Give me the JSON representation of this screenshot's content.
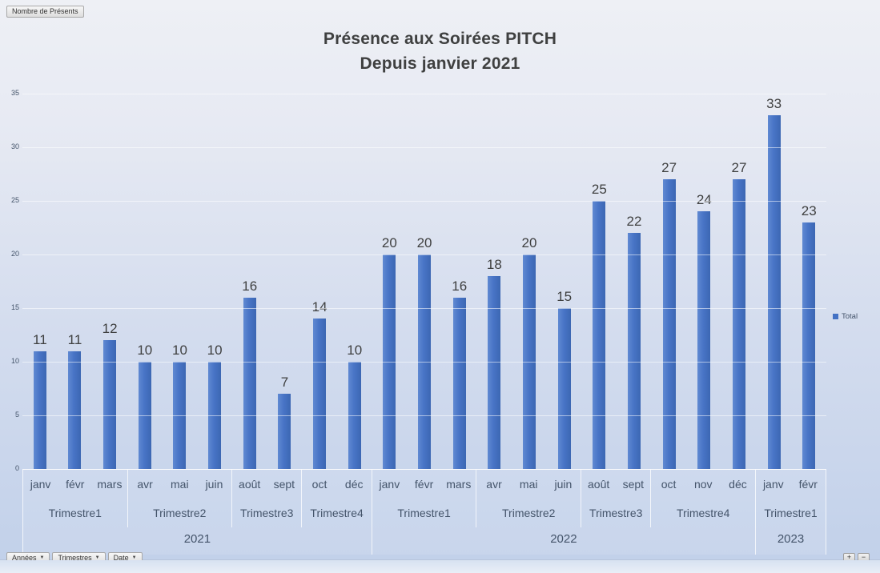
{
  "value_field": {
    "label": "Nombre de Présents"
  },
  "title": {
    "line1": "Présence aux Soirées PITCH",
    "line2": "Depuis janvier 2021"
  },
  "legend": {
    "label": "Total",
    "color": "#4472C4"
  },
  "filters": [
    {
      "label": "Années"
    },
    {
      "label": "Trimestres"
    },
    {
      "label": "Date"
    }
  ],
  "expand": {
    "plus": "+",
    "minus": "−"
  },
  "chart_data": {
    "type": "bar",
    "title": "Présence aux Soirées PITCH Depuis janvier 2021",
    "xlabel": "",
    "ylabel": "",
    "ylim": [
      0,
      35
    ],
    "yticks": [
      0,
      5,
      10,
      15,
      20,
      25,
      30,
      35
    ],
    "grid": true,
    "legend_position": "right",
    "bar_color": "#4472C4",
    "series_name": "Total",
    "categories": [
      "janv",
      "févr",
      "mars",
      "avr",
      "mai",
      "juin",
      "août",
      "sept",
      "oct",
      "déc",
      "janv",
      "févr",
      "mars",
      "avr",
      "mai",
      "juin",
      "août",
      "sept",
      "oct",
      "nov",
      "déc",
      "janv",
      "févr"
    ],
    "values": [
      11,
      11,
      12,
      10,
      10,
      10,
      16,
      7,
      14,
      10,
      20,
      20,
      16,
      18,
      20,
      15,
      25,
      22,
      27,
      24,
      27,
      33,
      23
    ],
    "groups": [
      {
        "year": "2021",
        "trimesters": [
          {
            "label": "Trimestre1",
            "months": [
              "janv",
              "févr",
              "mars"
            ],
            "values": [
              11,
              11,
              12
            ]
          },
          {
            "label": "Trimestre2",
            "months": [
              "avr",
              "mai",
              "juin"
            ],
            "values": [
              10,
              10,
              10
            ]
          },
          {
            "label": "Trimestre3",
            "months": [
              "août",
              "sept"
            ],
            "values": [
              16,
              7
            ]
          },
          {
            "label": "Trimestre4",
            "months": [
              "oct",
              "déc"
            ],
            "values": [
              14,
              10
            ]
          }
        ]
      },
      {
        "year": "2022",
        "trimesters": [
          {
            "label": "Trimestre1",
            "months": [
              "janv",
              "févr",
              "mars"
            ],
            "values": [
              20,
              20,
              16
            ]
          },
          {
            "label": "Trimestre2",
            "months": [
              "avr",
              "mai",
              "juin"
            ],
            "values": [
              18,
              20,
              15
            ]
          },
          {
            "label": "Trimestre3",
            "months": [
              "août",
              "sept"
            ],
            "values": [
              25,
              22
            ]
          },
          {
            "label": "Trimestre4",
            "months": [
              "oct",
              "nov",
              "déc"
            ],
            "values": [
              27,
              24,
              27
            ]
          }
        ]
      },
      {
        "year": "2023",
        "trimesters": [
          {
            "label": "Trimestre1",
            "months": [
              "janv",
              "févr"
            ],
            "values": [
              33,
              23
            ]
          }
        ]
      }
    ]
  }
}
